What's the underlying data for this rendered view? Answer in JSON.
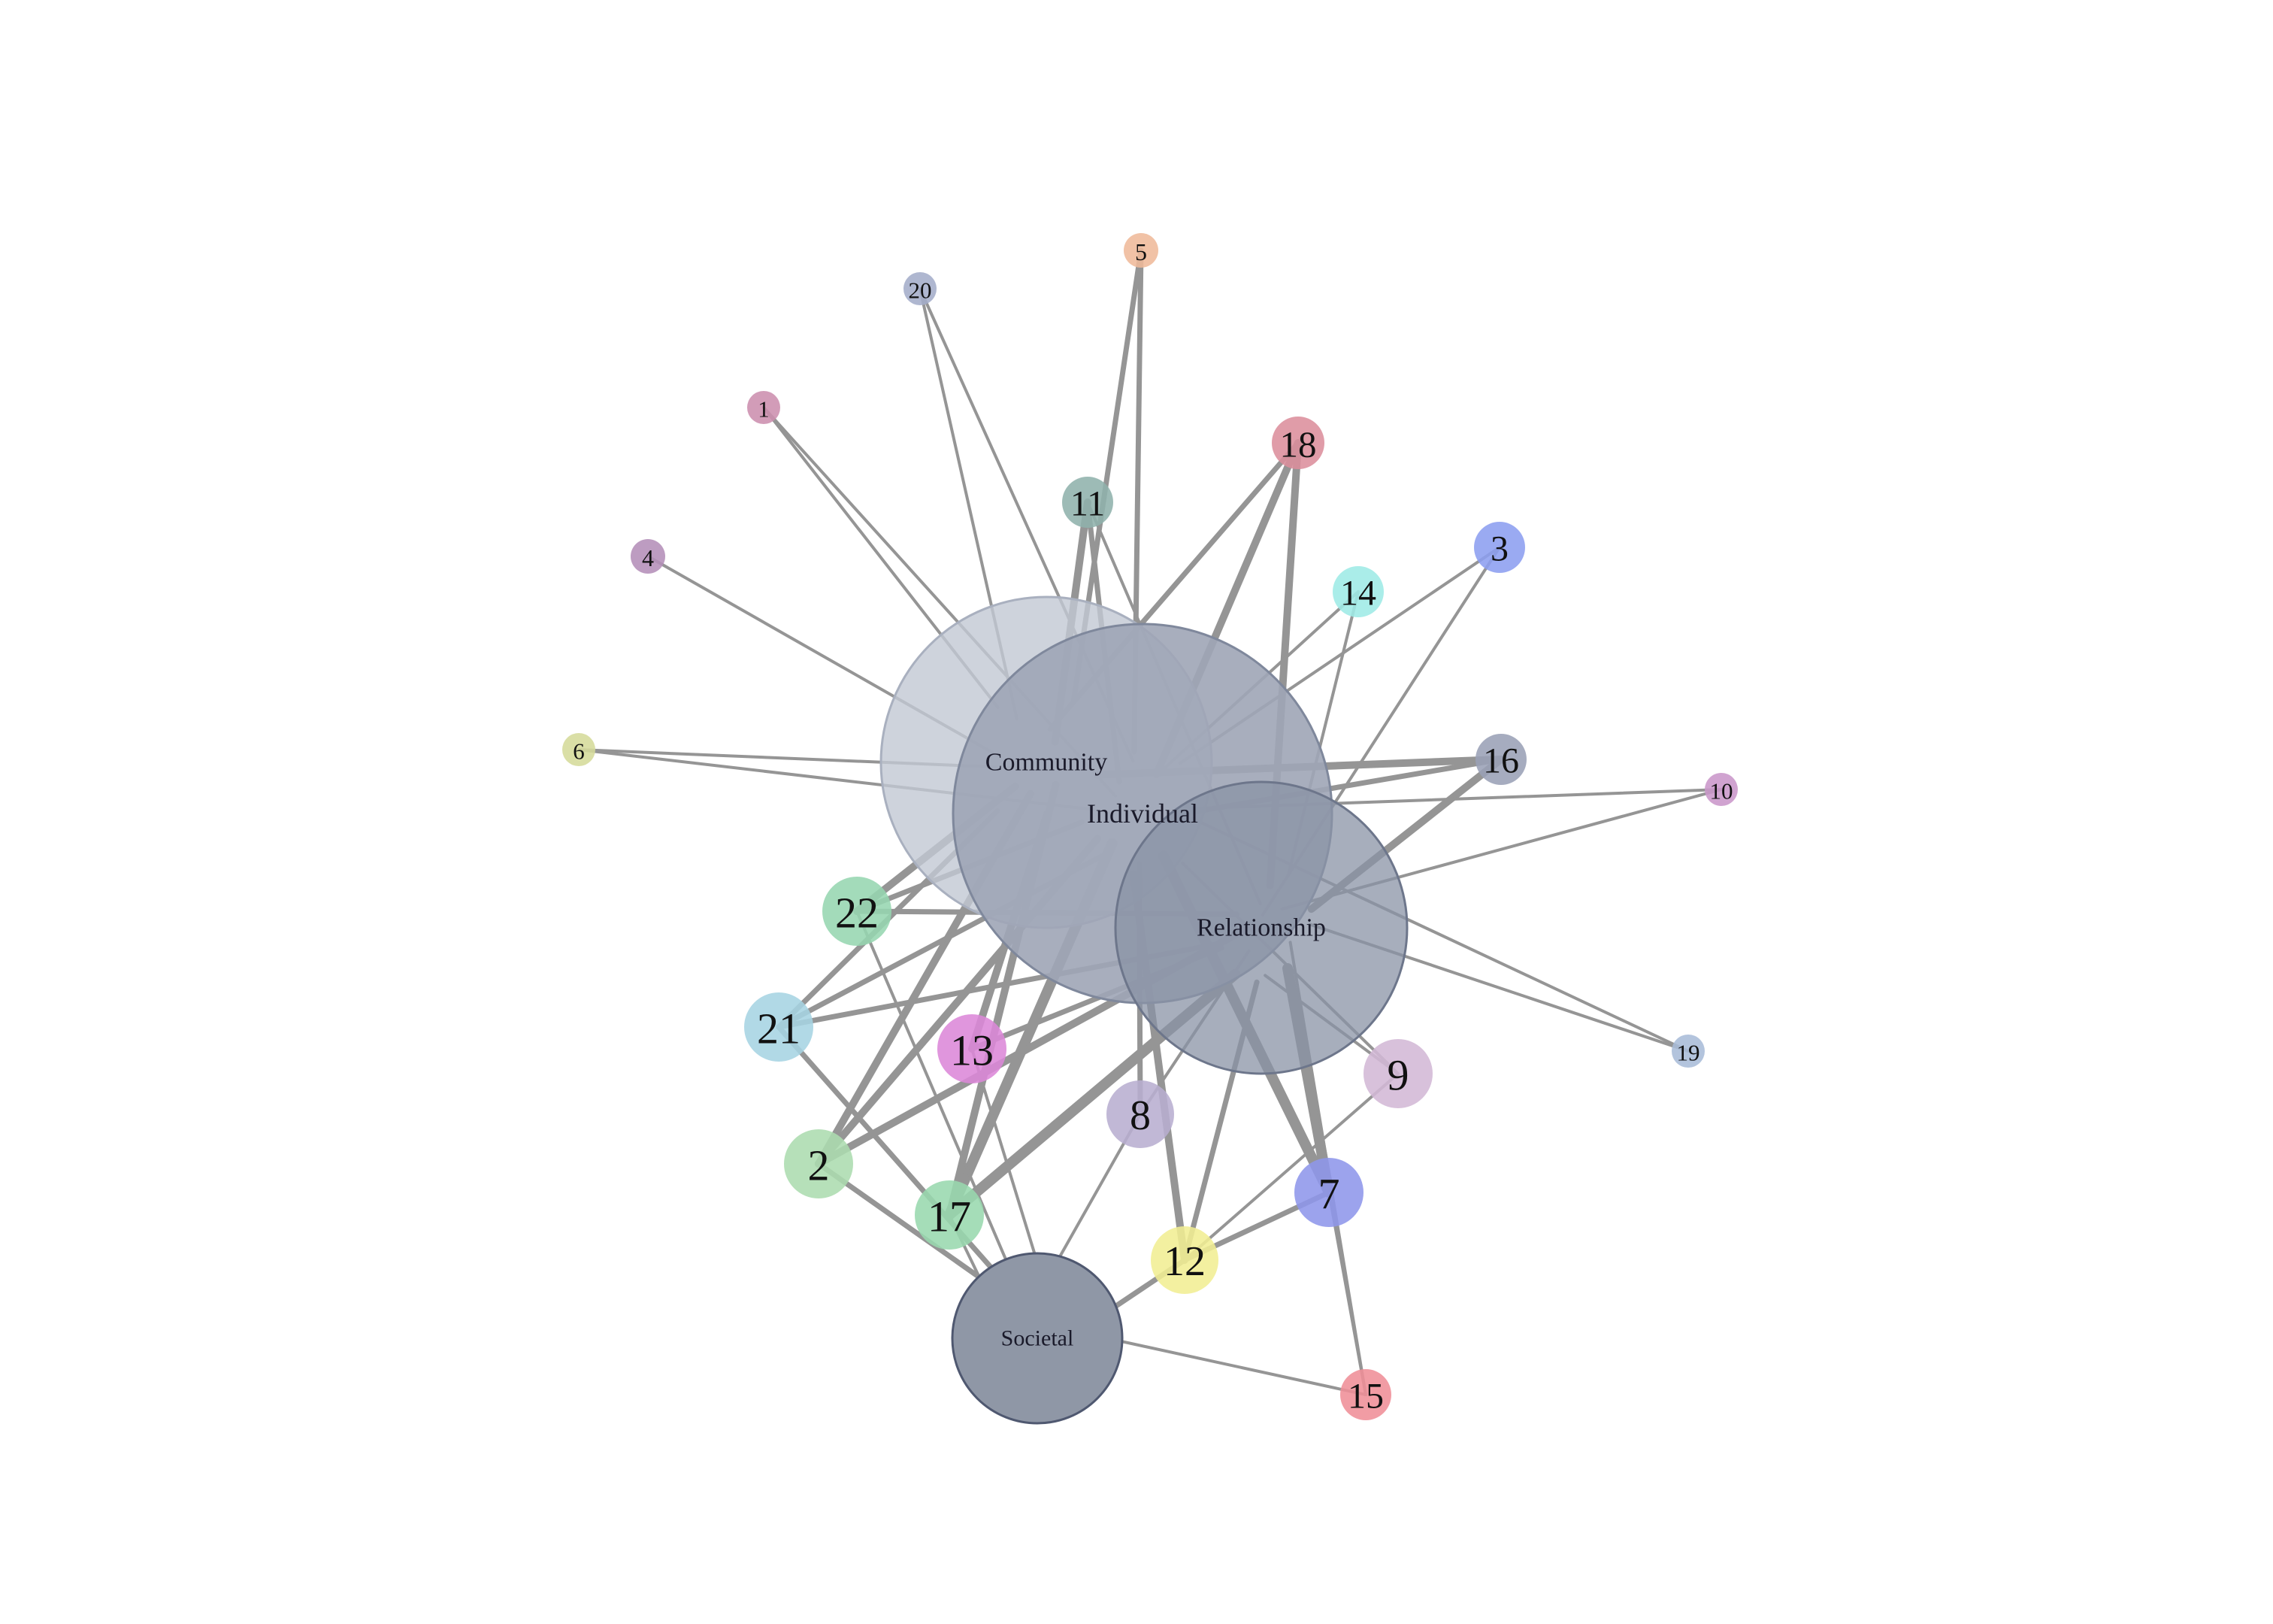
{
  "network": {
    "hubs": [
      {
        "id": "Community",
        "label": "Community",
        "fill": "#c2c8d3",
        "stroke": "#a9b0bf",
        "opacity": 0.8
      },
      {
        "id": "Individual",
        "label": "Individual",
        "fill": "#9ea5b6",
        "stroke": "#7f889c",
        "opacity": 0.9
      },
      {
        "id": "Relationship",
        "label": "Relationship",
        "fill": "#8a93a6",
        "stroke": "#6d768b",
        "opacity": 0.75
      },
      {
        "id": "Societal",
        "label": "Societal",
        "fill": "#8f97a6",
        "stroke": "#4f5870",
        "opacity": 1.0
      }
    ],
    "nodes": [
      {
        "id": "1",
        "label": "1",
        "color": "#cc8eae"
      },
      {
        "id": "2",
        "label": "2",
        "color": "#acdcaf"
      },
      {
        "id": "3",
        "label": "3",
        "color": "#8c9ef0"
      },
      {
        "id": "4",
        "label": "4",
        "color": "#b48eb8"
      },
      {
        "id": "5",
        "label": "5",
        "color": "#efb99a"
      },
      {
        "id": "6",
        "label": "6",
        "color": "#d5db9a"
      },
      {
        "id": "7",
        "label": "7",
        "color": "#8e96ea"
      },
      {
        "id": "8",
        "label": "8",
        "color": "#b8aed0"
      },
      {
        "id": "9",
        "label": "9",
        "color": "#d3b8d6"
      },
      {
        "id": "10",
        "label": "10",
        "color": "#c996c9"
      },
      {
        "id": "11",
        "label": "11",
        "color": "#8fb2ac"
      },
      {
        "id": "12",
        "label": "12",
        "color": "#f1ee93"
      },
      {
        "id": "13",
        "label": "13",
        "color": "#dc88d8"
      },
      {
        "id": "14",
        "label": "14",
        "color": "#9eeae6"
      },
      {
        "id": "15",
        "label": "15",
        "color": "#ef8e97"
      },
      {
        "id": "16",
        "label": "16",
        "color": "#9aa0b6"
      },
      {
        "id": "17",
        "label": "17",
        "color": "#98d8ae"
      },
      {
        "id": "18",
        "label": "18",
        "color": "#dc8e9c"
      },
      {
        "id": "19",
        "label": "19",
        "color": "#a8bcd8"
      },
      {
        "id": "20",
        "label": "20",
        "color": "#a4adca"
      },
      {
        "id": "21",
        "label": "21",
        "color": "#a6d4e2"
      },
      {
        "id": "22",
        "label": "22",
        "color": "#96d6b0"
      }
    ],
    "edges": [
      {
        "source": "1",
        "target": "Community",
        "weight": 1
      },
      {
        "source": "1",
        "target": "Individual",
        "weight": 1
      },
      {
        "source": "4",
        "target": "Community",
        "weight": 1
      },
      {
        "source": "6",
        "target": "Community",
        "weight": 1
      },
      {
        "source": "6",
        "target": "Individual",
        "weight": 1
      },
      {
        "source": "20",
        "target": "Community",
        "weight": 1
      },
      {
        "source": "20",
        "target": "Individual",
        "weight": 1
      },
      {
        "source": "5",
        "target": "Individual",
        "weight": 2
      },
      {
        "source": "5",
        "target": "Community",
        "weight": 2
      },
      {
        "source": "11",
        "target": "Community",
        "weight": 3
      },
      {
        "source": "11",
        "target": "Individual",
        "weight": 2
      },
      {
        "source": "11",
        "target": "Relationship",
        "weight": 1
      },
      {
        "source": "18",
        "target": "Individual",
        "weight": 3
      },
      {
        "source": "18",
        "target": "Community",
        "weight": 2
      },
      {
        "source": "18",
        "target": "Relationship",
        "weight": 3
      },
      {
        "source": "14",
        "target": "Individual",
        "weight": 1
      },
      {
        "source": "14",
        "target": "Relationship",
        "weight": 1
      },
      {
        "source": "3",
        "target": "Individual",
        "weight": 1
      },
      {
        "source": "3",
        "target": "Relationship",
        "weight": 1
      },
      {
        "source": "16",
        "target": "Community",
        "weight": 3
      },
      {
        "source": "16",
        "target": "Individual",
        "weight": 2
      },
      {
        "source": "16",
        "target": "Relationship",
        "weight": 3
      },
      {
        "source": "10",
        "target": "Individual",
        "weight": 1
      },
      {
        "source": "10",
        "target": "Relationship",
        "weight": 1
      },
      {
        "source": "19",
        "target": "Relationship",
        "weight": 1
      },
      {
        "source": "19",
        "target": "Individual",
        "weight": 1
      },
      {
        "source": "9",
        "target": "Relationship",
        "weight": 1
      },
      {
        "source": "9",
        "target": "Individual",
        "weight": 1
      },
      {
        "source": "9",
        "target": "12",
        "weight": 1
      },
      {
        "source": "7",
        "target": "Relationship",
        "weight": 4
      },
      {
        "source": "7",
        "target": "Individual",
        "weight": 4
      },
      {
        "source": "7",
        "target": "15",
        "weight": 1
      },
      {
        "source": "7",
        "target": "12",
        "weight": 2
      },
      {
        "source": "15",
        "target": "Societal",
        "weight": 1
      },
      {
        "source": "15",
        "target": "Relationship",
        "weight": 1
      },
      {
        "source": "12",
        "target": "Relationship",
        "weight": 2
      },
      {
        "source": "12",
        "target": "Individual",
        "weight": 3
      },
      {
        "source": "12",
        "target": "Societal",
        "weight": 2
      },
      {
        "source": "8",
        "target": "Individual",
        "weight": 2
      },
      {
        "source": "8",
        "target": "Societal",
        "weight": 1
      },
      {
        "source": "8",
        "target": "Relationship",
        "weight": 1
      },
      {
        "source": "17",
        "target": "Individual",
        "weight": 4
      },
      {
        "source": "17",
        "target": "Community",
        "weight": 3
      },
      {
        "source": "17",
        "target": "Relationship",
        "weight": 4
      },
      {
        "source": "17",
        "target": "Societal",
        "weight": 1
      },
      {
        "source": "13",
        "target": "Community",
        "weight": 3
      },
      {
        "source": "13",
        "target": "Relationship",
        "weight": 2
      },
      {
        "source": "13",
        "target": "Societal",
        "weight": 1
      },
      {
        "source": "2",
        "target": "Community",
        "weight": 3
      },
      {
        "source": "2",
        "target": "Individual",
        "weight": 3
      },
      {
        "source": "2",
        "target": "Relationship",
        "weight": 3
      },
      {
        "source": "2",
        "target": "Societal",
        "weight": 2
      },
      {
        "source": "21",
        "target": "Community",
        "weight": 2
      },
      {
        "source": "21",
        "target": "Individual",
        "weight": 2
      },
      {
        "source": "21",
        "target": "Relationship",
        "weight": 2
      },
      {
        "source": "21",
        "target": "Societal",
        "weight": 2
      },
      {
        "source": "22",
        "target": "Community",
        "weight": 3
      },
      {
        "source": "22",
        "target": "Individual",
        "weight": 2
      },
      {
        "source": "22",
        "target": "Relationship",
        "weight": 2
      },
      {
        "source": "22",
        "target": "Societal",
        "weight": 1
      }
    ]
  }
}
